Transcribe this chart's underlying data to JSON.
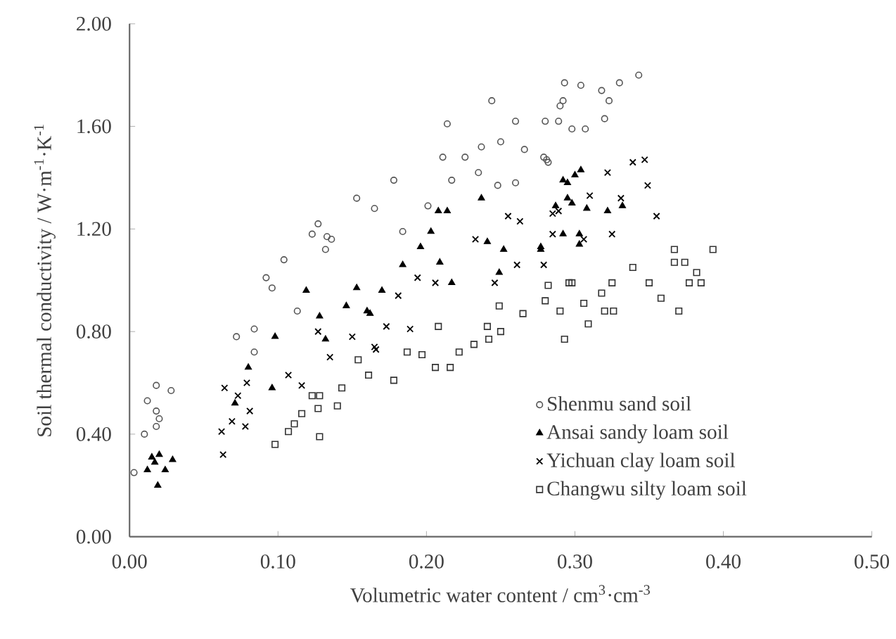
{
  "chart_data": {
    "type": "scatter",
    "xlabel": "Volumetric water content / cm$^{3}$·cm$^{-3}$",
    "ylabel": "Soil thermal conductivity / W·m$^{-1}$·K$^{-1}$",
    "xlim": [
      0,
      0.5
    ],
    "ylim": [
      0,
      2
    ],
    "xticks": [
      {
        "value": 0,
        "label": "0.00"
      },
      {
        "value": 0.1,
        "label": "0.10"
      },
      {
        "value": 0.2,
        "label": "0.20"
      },
      {
        "value": 0.3,
        "label": "0.30"
      },
      {
        "value": 0.4,
        "label": "0.40"
      },
      {
        "value": 0.5,
        "label": "0.50"
      }
    ],
    "yticks": [
      {
        "value": 0,
        "label": "0.00"
      },
      {
        "value": 0.4,
        "label": "0.40"
      },
      {
        "value": 0.8,
        "label": "0.80"
      },
      {
        "value": 1.2,
        "label": "1.20"
      },
      {
        "value": 1.6,
        "label": "1.60"
      },
      {
        "value": 2,
        "label": "2.00"
      }
    ],
    "grid": false,
    "legend": "bottom right",
    "series": [
      {
        "name": "Shenmu sand soil",
        "color": "#555555",
        "marker": "circle",
        "x": [
          0.003,
          0.01,
          0.012,
          0.018,
          0.028,
          0.018,
          0.018,
          0.02,
          0.072,
          0.084,
          0.084,
          0.092,
          0.096,
          0.104,
          0.113,
          0.123,
          0.127,
          0.136,
          0.132,
          0.153,
          0.165,
          0.178,
          0.214,
          0.211,
          0.226,
          0.237,
          0.244,
          0.235,
          0.217,
          0.26,
          0.25,
          0.266,
          0.248,
          0.26,
          0.279,
          0.282,
          0.289,
          0.293,
          0.292,
          0.201,
          0.184,
          0.133,
          0.304,
          0.318,
          0.33,
          0.343,
          0.323,
          0.29,
          0.28,
          0.298,
          0.307,
          0.32,
          0.281
        ],
        "values": [
          0.25,
          0.4,
          0.53,
          0.59,
          0.57,
          0.49,
          0.43,
          0.46,
          0.78,
          0.81,
          0.72,
          1.01,
          0.97,
          1.08,
          0.88,
          1.18,
          1.22,
          1.16,
          1.12,
          1.32,
          1.28,
          1.39,
          1.61,
          1.48,
          1.48,
          1.52,
          1.7,
          1.42,
          1.39,
          1.62,
          1.54,
          1.51,
          1.37,
          1.38,
          1.48,
          1.46,
          1.62,
          1.77,
          1.7,
          1.29,
          1.19,
          1.17,
          1.76,
          1.74,
          1.77,
          1.8,
          1.7,
          1.68,
          1.62,
          1.59,
          1.59,
          1.63,
          1.47
        ]
      },
      {
        "name": "Ansai sandy loam soil",
        "color": "#000000",
        "marker": "triangle",
        "x": [
          0.012,
          0.017,
          0.019,
          0.024,
          0.029,
          0.015,
          0.02,
          0.071,
          0.08,
          0.098,
          0.096,
          0.119,
          0.128,
          0.132,
          0.146,
          0.153,
          0.16,
          0.17,
          0.184,
          0.196,
          0.203,
          0.208,
          0.214,
          0.209,
          0.217,
          0.237,
          0.241,
          0.252,
          0.249,
          0.277,
          0.292,
          0.295,
          0.162,
          0.295,
          0.3,
          0.304,
          0.287,
          0.298,
          0.308,
          0.322,
          0.332,
          0.277,
          0.292,
          0.303,
          0.303
        ],
        "values": [
          0.26,
          0.29,
          0.2,
          0.26,
          0.3,
          0.31,
          0.32,
          0.52,
          0.66,
          0.78,
          0.58,
          0.96,
          0.86,
          0.77,
          0.9,
          0.97,
          0.88,
          0.96,
          1.06,
          1.13,
          1.19,
          1.27,
          1.27,
          1.07,
          0.99,
          1.32,
          1.15,
          1.12,
          1.03,
          1.13,
          1.39,
          1.32,
          0.87,
          1.38,
          1.41,
          1.43,
          1.29,
          1.3,
          1.28,
          1.27,
          1.29,
          1.12,
          1.18,
          1.14,
          1.18
        ]
      },
      {
        "name": "Yichuan clay loam soil",
        "color": "#000000",
        "marker": "cross",
        "x": [
          0.063,
          0.062,
          0.064,
          0.069,
          0.073,
          0.078,
          0.081,
          0.079,
          0.107,
          0.116,
          0.127,
          0.135,
          0.15,
          0.165,
          0.166,
          0.173,
          0.181,
          0.189,
          0.194,
          0.206,
          0.233,
          0.246,
          0.255,
          0.263,
          0.261,
          0.279,
          0.289,
          0.285,
          0.285,
          0.322,
          0.339,
          0.347,
          0.349,
          0.355,
          0.331,
          0.325,
          0.306,
          0.31
        ],
        "values": [
          0.32,
          0.41,
          0.58,
          0.45,
          0.55,
          0.43,
          0.49,
          0.6,
          0.63,
          0.59,
          0.8,
          0.7,
          0.78,
          0.74,
          0.73,
          0.82,
          0.94,
          0.81,
          1.01,
          0.99,
          1.16,
          0.99,
          1.25,
          1.23,
          1.06,
          1.06,
          1.27,
          1.18,
          1.26,
          1.42,
          1.46,
          1.47,
          1.37,
          1.25,
          1.32,
          1.18,
          1.16,
          1.33
        ]
      },
      {
        "name": "Changwu silty loam soil",
        "color": "#333333",
        "marker": "square",
        "x": [
          0.098,
          0.107,
          0.111,
          0.116,
          0.123,
          0.128,
          0.128,
          0.14,
          0.143,
          0.154,
          0.161,
          0.127,
          0.178,
          0.187,
          0.197,
          0.206,
          0.216,
          0.208,
          0.222,
          0.232,
          0.242,
          0.241,
          0.25,
          0.249,
          0.265,
          0.282,
          0.29,
          0.293,
          0.296,
          0.28,
          0.298,
          0.306,
          0.309,
          0.318,
          0.32,
          0.326,
          0.325,
          0.339,
          0.35,
          0.358,
          0.37,
          0.367,
          0.367,
          0.374,
          0.382,
          0.385,
          0.393,
          0.377
        ],
        "values": [
          0.36,
          0.41,
          0.44,
          0.48,
          0.55,
          0.55,
          0.39,
          0.51,
          0.58,
          0.69,
          0.63,
          0.5,
          0.61,
          0.72,
          0.71,
          0.66,
          0.66,
          0.82,
          0.72,
          0.75,
          0.77,
          0.82,
          0.8,
          0.9,
          0.87,
          0.98,
          0.88,
          0.77,
          0.99,
          0.92,
          0.99,
          0.91,
          0.83,
          0.95,
          0.88,
          0.88,
          0.99,
          1.05,
          0.99,
          0.93,
          0.88,
          1.12,
          1.07,
          1.07,
          1.03,
          0.99,
          1.12,
          0.99
        ]
      }
    ]
  }
}
